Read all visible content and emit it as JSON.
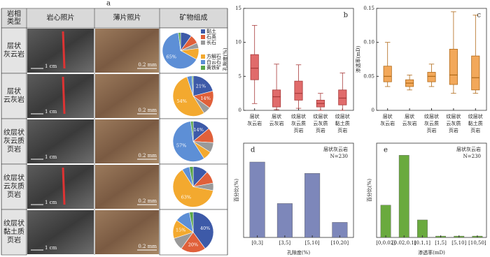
{
  "figure_label": "a",
  "table": {
    "header": [
      [
        "岩相",
        "类型"
      ],
      [
        "岩心照片"
      ],
      [
        "薄片照片"
      ],
      [
        "矿物组成"
      ]
    ],
    "core_scale": "1 cm",
    "thin_scale": "0.2 mm",
    "rows": [
      {
        "label": [
          "层状",
          "灰云岩"
        ]
      },
      {
        "label": [
          "层状",
          "云灰岩"
        ]
      },
      {
        "label": [
          "纹层状",
          "灰云质",
          "页岩"
        ]
      },
      {
        "label": [
          "纹层状",
          "云灰质",
          "页岩"
        ]
      },
      {
        "label": [
          "纹层状",
          "黏土质",
          "页岩"
        ]
      }
    ]
  },
  "chart_data": [
    {
      "type": "pie",
      "categories": [
        "黏土",
        "石英",
        "长石",
        "方解石",
        "白云石",
        "黄铁矿"
      ],
      "colors": [
        "#3d5aa8",
        "#e0603a",
        "#9a9a9a",
        "#f3a92f",
        "#5d8fd6",
        "#5aa64a"
      ],
      "legend": true,
      "values": [
        10,
        8,
        5,
        10,
        65,
        2
      ],
      "value_labels": [
        null,
        null,
        null,
        null,
        "65%",
        null
      ]
    },
    {
      "type": "pie",
      "values": [
        21,
        14,
        6,
        54,
        4,
        1
      ],
      "value_labels": [
        "21%",
        "14%",
        null,
        "54%",
        null,
        null
      ]
    },
    {
      "type": "pie",
      "values": [
        14,
        12,
        8,
        7,
        57,
        2
      ],
      "value_labels": [
        "14%",
        null,
        null,
        null,
        "57%",
        null
      ]
    },
    {
      "type": "pie",
      "values": [
        12,
        10,
        6,
        63,
        6,
        3
      ],
      "value_labels": [
        null,
        null,
        null,
        "63%",
        null,
        null
      ]
    },
    {
      "type": "pie",
      "values": [
        40,
        20,
        10,
        15,
        12,
        3
      ],
      "value_labels": [
        "40%",
        "20%",
        null,
        "15%",
        null,
        null
      ]
    },
    {
      "type": "box",
      "panel": "b",
      "ylabel": "孔隙度(%)",
      "color": "#e06b6b",
      "edge": "#a83a3a",
      "categories": [
        [
          "层状",
          "灰云岩"
        ],
        [
          "层状",
          "云灰岩"
        ],
        [
          "纹层状",
          "灰云质",
          "页岩"
        ],
        [
          "纹层状",
          "云灰质",
          "页岩"
        ],
        [
          "纹层状",
          "黏土质",
          "页岩"
        ]
      ],
      "ylim": [
        0,
        15
      ],
      "yticks": [
        0,
        5,
        10,
        15
      ],
      "values": [
        {
          "min": 1,
          "q1": 4.5,
          "median": 6.2,
          "q3": 8.2,
          "max": 12.5
        },
        {
          "min": 0.1,
          "q1": 0.5,
          "median": 2,
          "q3": 3,
          "max": 6.8
        },
        {
          "min": 0.3,
          "q1": 1.5,
          "median": 2.5,
          "q3": 4.3,
          "max": 6.7
        },
        {
          "min": 0,
          "q1": 0.5,
          "median": 1,
          "q3": 1.5,
          "max": 2.5
        },
        {
          "min": 0,
          "q1": 0.8,
          "median": 1.8,
          "q3": 3,
          "max": 5.5
        }
      ]
    },
    {
      "type": "box",
      "panel": "c",
      "ylabel": "渗透率(mD)",
      "color": "#f2a85a",
      "edge": "#b06a1a",
      "categories": [
        [
          "层状",
          "灰云岩"
        ],
        [
          "层状",
          "云灰岩"
        ],
        [
          "纹层状",
          "灰云质",
          "页岩"
        ],
        [
          "纹层状",
          "云灰质",
          "页岩"
        ],
        [
          "纹层状",
          "黏土质",
          "页岩"
        ]
      ],
      "ylim": [
        0,
        0.15
      ],
      "yticks": [
        0,
        0.05,
        {
          "value": 0.1,
          "label": "0.10"
        },
        0.15
      ],
      "values": [
        {
          "min": 0.035,
          "q1": 0.042,
          "median": 0.05,
          "q3": 0.065,
          "max": 0.1
        },
        {
          "min": 0.03,
          "q1": 0.035,
          "median": 0.04,
          "q3": 0.045,
          "max": 0.052
        },
        {
          "min": 0.035,
          "q1": 0.042,
          "median": 0.05,
          "q3": 0.056,
          "max": 0.068
        },
        {
          "min": 0.025,
          "q1": 0.038,
          "median": 0.052,
          "q3": 0.09,
          "max": 0.145
        },
        {
          "min": 0.025,
          "q1": 0.03,
          "median": 0.048,
          "q3": 0.08,
          "max": 0.14
        }
      ]
    },
    {
      "type": "bar",
      "panel": "d",
      "ylabel": "百分比(%)",
      "xlabel": "孔隙度(%)",
      "color": "#7d87ba",
      "annotation": [
        "层状灰云岩",
        "N=230"
      ],
      "categories": [
        "[0,3]",
        "[3,5]",
        "[5,10]",
        "[10,20]"
      ],
      "values": [
        40,
        18,
        34,
        8
      ],
      "ylim": [
        0,
        50
      ]
    },
    {
      "type": "bar",
      "panel": "e",
      "ylabel": "百分比(%)",
      "xlabel": "渗透率(mD)",
      "color": "#6aaa3e",
      "annotation": [
        "层状灰云岩",
        "N=230"
      ],
      "categories": [
        "[0,0.02]",
        "[0.02,0.1]",
        "[0.1,1]",
        "[1,5]",
        "[5,10]",
        "[10,50]"
      ],
      "values": [
        24,
        61,
        13,
        1,
        1,
        1
      ],
      "ylim": [
        0,
        70
      ]
    }
  ]
}
